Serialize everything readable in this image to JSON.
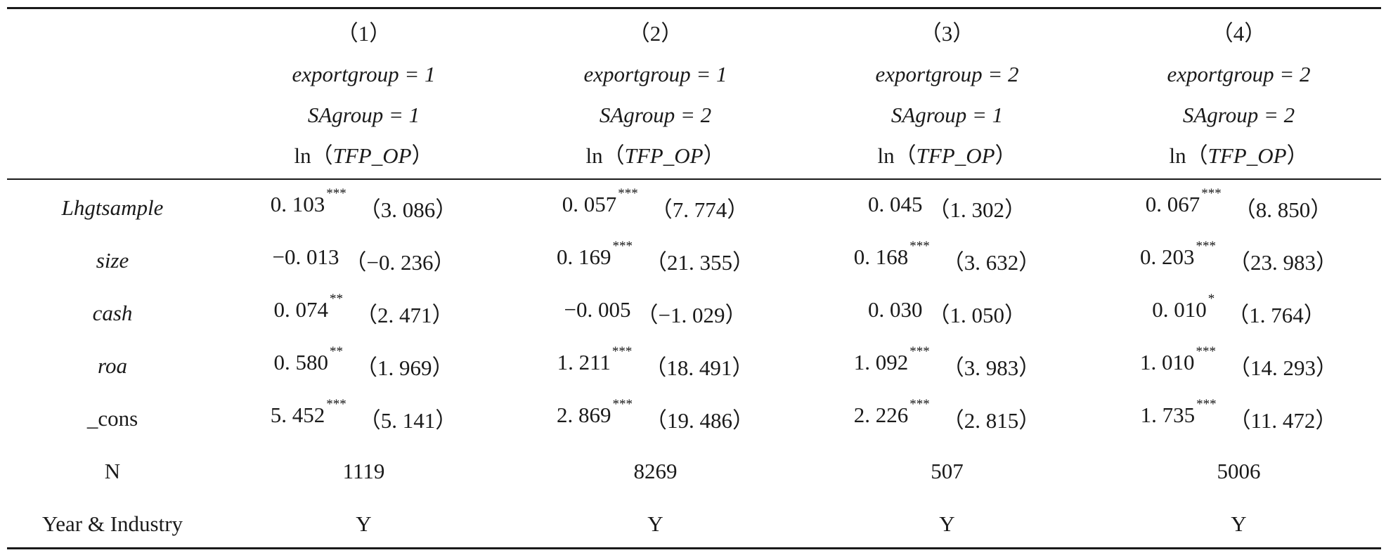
{
  "columns": [
    {
      "num": "（1）",
      "export_cond": "exportgroup = 1",
      "sa_cond": "SAgroup = 1",
      "dep_var_pre": "ln（",
      "dep_var": "TFP_OP",
      "dep_var_post": "）"
    },
    {
      "num": "（2）",
      "export_cond": "exportgroup = 1",
      "sa_cond": "SAgroup = 2",
      "dep_var_pre": "ln（",
      "dep_var": "TFP_OP",
      "dep_var_post": "）"
    },
    {
      "num": "（3）",
      "export_cond": "exportgroup = 2",
      "sa_cond": "SAgroup = 1",
      "dep_var_pre": "ln（",
      "dep_var": "TFP_OP",
      "dep_var_post": "）"
    },
    {
      "num": "（4）",
      "export_cond": "exportgroup = 2",
      "sa_cond": "SAgroup = 2",
      "dep_var_pre": "ln（",
      "dep_var": "TFP_OP",
      "dep_var_post": "）"
    }
  ],
  "rows": [
    {
      "label": "Lhgtsample",
      "italic": true,
      "cells": [
        {
          "coef": "0. 103",
          "stars": "***",
          "t": "（3. 086）"
        },
        {
          "coef": "0. 057",
          "stars": "***",
          "t": "（7. 774）"
        },
        {
          "coef": "0. 045",
          "stars": "",
          "t": "（1. 302）"
        },
        {
          "coef": "0. 067",
          "stars": "***",
          "t": "（8. 850）"
        }
      ]
    },
    {
      "label": "size",
      "italic": true,
      "cells": [
        {
          "coef": "−0. 013",
          "stars": "",
          "t": "（−0. 236）"
        },
        {
          "coef": "0. 169",
          "stars": "***",
          "t": "（21. 355）"
        },
        {
          "coef": "0. 168",
          "stars": "***",
          "t": "（3. 632）"
        },
        {
          "coef": "0. 203",
          "stars": "***",
          "t": "（23. 983）"
        }
      ]
    },
    {
      "label": "cash",
      "italic": true,
      "cells": [
        {
          "coef": "0. 074",
          "stars": "**",
          "t": "（2. 471）"
        },
        {
          "coef": "−0. 005",
          "stars": "",
          "t": "（−1. 029）"
        },
        {
          "coef": "0. 030",
          "stars": "",
          "t": "（1. 050）"
        },
        {
          "coef": "0. 010",
          "stars": "*",
          "t": "（1. 764）"
        }
      ]
    },
    {
      "label": "roa",
      "italic": true,
      "cells": [
        {
          "coef": "0. 580",
          "stars": "**",
          "t": "（1. 969）"
        },
        {
          "coef": "1. 211",
          "stars": "***",
          "t": "（18. 491）"
        },
        {
          "coef": "1. 092",
          "stars": "***",
          "t": "（3. 983）"
        },
        {
          "coef": "1. 010",
          "stars": "***",
          "t": "（14. 293）"
        }
      ]
    },
    {
      "label": "_cons",
      "italic": false,
      "cells": [
        {
          "coef": "5. 452",
          "stars": "***",
          "t": "（5. 141）"
        },
        {
          "coef": "2. 869",
          "stars": "***",
          "t": "（19. 486）"
        },
        {
          "coef": "2. 226",
          "stars": "***",
          "t": "（2. 815）"
        },
        {
          "coef": "1. 735",
          "stars": "***",
          "t": "（11. 472）"
        }
      ]
    },
    {
      "label": "N",
      "italic": false,
      "cells": [
        {
          "coef": "1119",
          "stars": "",
          "t": ""
        },
        {
          "coef": "8269",
          "stars": "",
          "t": ""
        },
        {
          "coef": "507",
          "stars": "",
          "t": ""
        },
        {
          "coef": "5006",
          "stars": "",
          "t": ""
        }
      ]
    },
    {
      "label": "Year & Industry",
      "italic": false,
      "cells": [
        {
          "coef": "Y",
          "stars": "",
          "t": ""
        },
        {
          "coef": "Y",
          "stars": "",
          "t": ""
        },
        {
          "coef": "Y",
          "stars": "",
          "t": ""
        },
        {
          "coef": "Y",
          "stars": "",
          "t": ""
        }
      ]
    }
  ]
}
